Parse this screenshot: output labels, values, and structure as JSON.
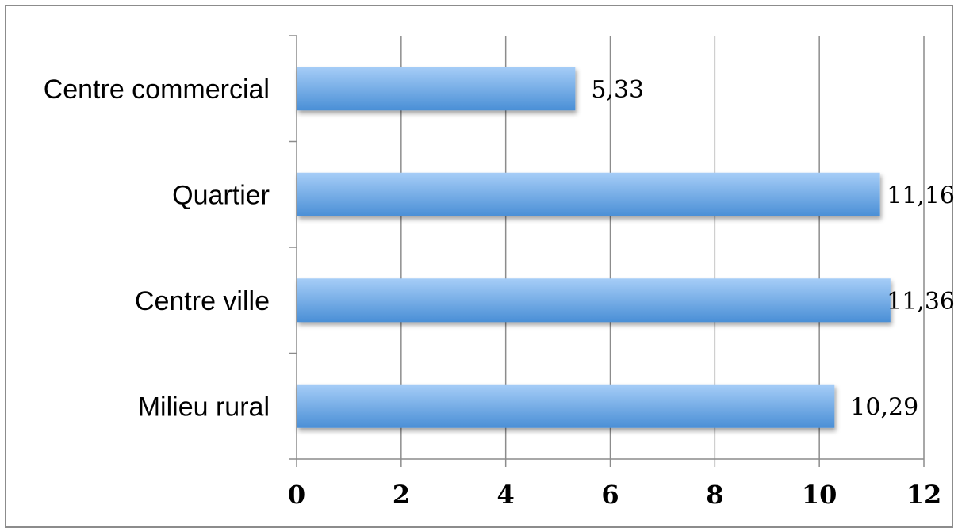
{
  "chart_data": {
    "type": "bar",
    "orientation": "horizontal",
    "categories": [
      "Centre commercial",
      "Quartier",
      "Centre ville ",
      "Milieu rural"
    ],
    "values": [
      5.33,
      11.16,
      11.36,
      10.29
    ],
    "value_labels": [
      "5,33",
      "11,16",
      "11,36",
      "10,29"
    ],
    "xlim": [
      0,
      12
    ],
    "x_ticks": [
      0,
      2,
      4,
      6,
      8,
      10,
      12
    ],
    "x_tick_labels": [
      "0",
      "2",
      "4",
      "6",
      "8",
      "10",
      "12"
    ],
    "grid": "vertical",
    "legend": "none",
    "colors": {
      "bar_light": "#a6cdf7",
      "bar_dark": "#4a8fd6",
      "grid": "#8c8c8c",
      "axis": "#8c8c8c"
    }
  }
}
